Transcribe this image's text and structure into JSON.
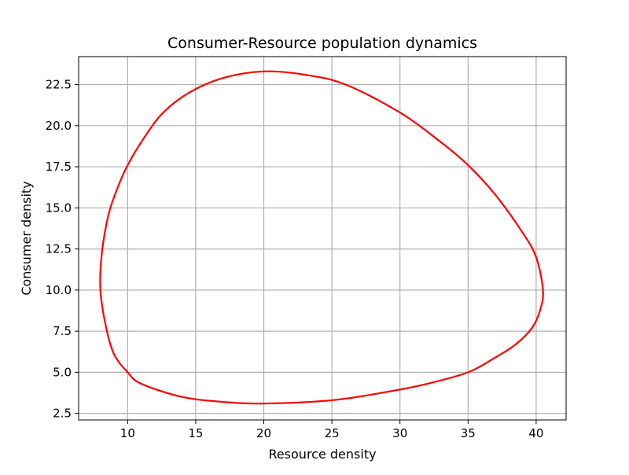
{
  "chart_data": {
    "type": "line",
    "title": "Consumer-Resource population dynamics",
    "xlabel": "Resource density",
    "ylabel": "Consumer density",
    "xlim": [
      6.4,
      42.2
    ],
    "ylim": [
      2.1,
      24.2
    ],
    "xticks": [
      10,
      15,
      20,
      25,
      30,
      35,
      40
    ],
    "xtick_labels": [
      "10",
      "15",
      "20",
      "25",
      "30",
      "35",
      "40"
    ],
    "yticks": [
      2.5,
      5.0,
      7.5,
      10.0,
      12.5,
      15.0,
      17.5,
      20.0,
      22.5
    ],
    "ytick_labels": [
      "2.5",
      "5.0",
      "7.5",
      "10.0",
      "12.5",
      "15.0",
      "17.5",
      "20.0",
      "22.5"
    ],
    "grid": true,
    "series": [
      {
        "color": "#ff0000",
        "x": [
          20.0,
          23.0,
          26.0,
          30.0,
          33.0,
          35.0,
          37.0,
          39.0,
          40.0,
          40.5,
          40.3,
          39.7,
          38.5,
          37.0,
          35.0,
          32.0,
          29.0,
          25.0,
          20.0,
          17.0,
          14.0,
          11.0,
          10.0,
          9.0,
          8.4,
          8.0,
          8.1,
          8.6,
          9.3,
          10.0,
          11.0,
          12.5,
          14.5,
          17.0,
          20.0
        ],
        "y": [
          23.3,
          23.1,
          22.5,
          20.8,
          19.0,
          17.6,
          15.8,
          13.5,
          12.0,
          10.0,
          8.8,
          7.7,
          6.7,
          5.9,
          5.0,
          4.3,
          3.8,
          3.3,
          3.1,
          3.2,
          3.5,
          4.3,
          5.0,
          6.1,
          7.8,
          10.0,
          12.2,
          14.6,
          16.3,
          17.6,
          19.0,
          20.7,
          22.0,
          22.9,
          23.3
        ]
      }
    ]
  }
}
